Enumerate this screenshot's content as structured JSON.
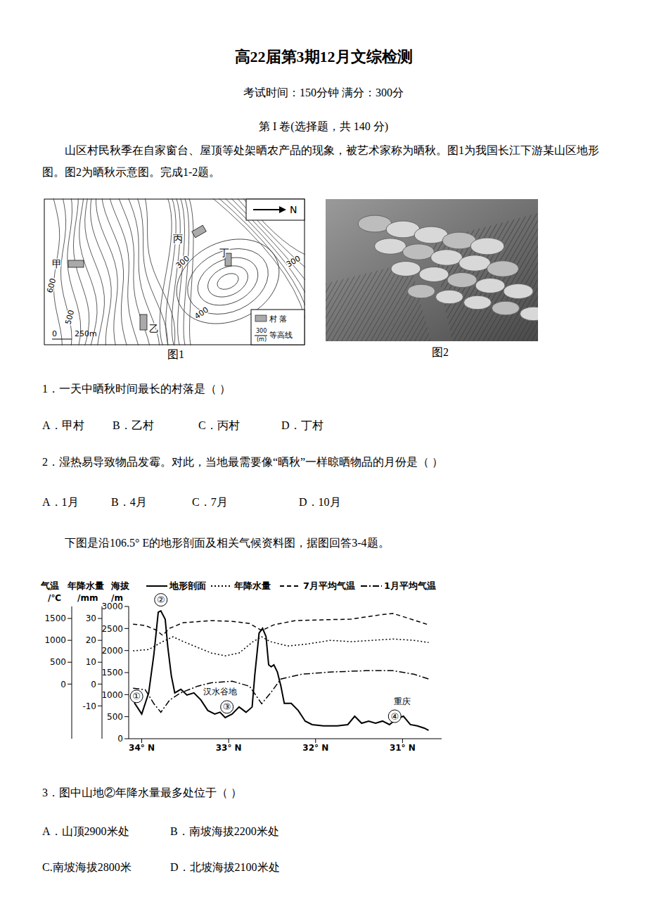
{
  "header": {
    "title": "高22届第3期12月文综检测",
    "subtitle": "考试时间：150分钟 满分：300分",
    "section": "第 I 卷(选择题，共 140 分)"
  },
  "passage1": "山区村民秋季在自家窗台、屋顶等处架晒农产品的现象，被艺术家称为晒秋。图1为我国长江下游某山区地形图。图2为晒秋示意图。完成1-2题。",
  "figures": {
    "fig1": {
      "caption": "图1",
      "north": "N",
      "villages": [
        "甲",
        "乙",
        "丙",
        "丁"
      ],
      "contour_labels": [
        "600",
        "500",
        "300",
        "400",
        "300"
      ],
      "legend": {
        "village": "村 落",
        "contour": "等高线",
        "contour_sample": "300",
        "contour_unit": "(m)"
      },
      "scale": {
        "zero": "0",
        "length": "250m"
      }
    },
    "fig2": {
      "caption": "图2"
    }
  },
  "questions": [
    {
      "text": "1．一天中晒秋时间最长的村落是（    ）",
      "options": [
        "A．甲村",
        "B．乙村",
        "C．丙村",
        "D．丁村"
      ]
    },
    {
      "text": "2．湿热易导致物品发霉。对此，当地最需要像“晒秋”一样晾晒物品的月份是（    ）",
      "options": [
        "A．1月",
        "B．4月",
        "C．7月",
        "D．10月"
      ]
    }
  ],
  "passage2": "下图是沿106.5° E的地形剖面及相关气候资料图，据图回答3-4题。",
  "chart_data": {
    "type": "line",
    "ylabel": "海拔",
    "yunit": "/m",
    "y2label": "气温",
    "y2unit": "/℃",
    "y3label": "年降水量",
    "y3unit": "/mm",
    "xlim": [
      34.15,
      30.55
    ],
    "xticks": [
      {
        "value": 34,
        "label": "34° N"
      },
      {
        "value": 33,
        "label": "33° N"
      },
      {
        "value": 32,
        "label": "32° N"
      },
      {
        "value": 31,
        "label": "31° N"
      }
    ],
    "ylim": [
      0,
      3000
    ],
    "yticks": [
      0,
      500,
      1000,
      1500,
      2000,
      2500,
      3000
    ],
    "y2lim": [
      -25,
      35.5
    ],
    "y2ticks": [
      -10,
      0,
      10,
      20,
      30
    ],
    "y3lim": [
      -1250,
      1775
    ],
    "y3ticks": [
      0,
      500,
      1000,
      1500
    ],
    "series": [
      {
        "name": "地形剖面",
        "color": "#000000",
        "line_style": "solid",
        "x": [
          34.1,
          34.08,
          34.0,
          33.92,
          33.86,
          33.81,
          33.78,
          33.73,
          33.7,
          33.66,
          33.62,
          33.55,
          33.48,
          33.4,
          33.32,
          33.24,
          33.16,
          33.1,
          33.04,
          32.96,
          32.88,
          32.8,
          32.73,
          32.7,
          32.65,
          32.61,
          32.57,
          32.54,
          32.51,
          32.48,
          32.44,
          32.4,
          32.36,
          32.28,
          32.2,
          32.12,
          32.04,
          31.91,
          31.75,
          31.63,
          31.55,
          31.47,
          31.39,
          31.31,
          31.23,
          31.15,
          31.07,
          30.99,
          30.91,
          30.83,
          30.75,
          30.7
        ],
        "values": [
          960,
          800,
          560,
          1040,
          1915,
          2870,
          2900,
          2710,
          2075,
          1435,
          1040,
          1120,
          990,
          1040,
          880,
          640,
          560,
          600,
          480,
          560,
          720,
          600,
          720,
          1435,
          2395,
          2505,
          2315,
          1675,
          1630,
          1675,
          1515,
          1200,
          800,
          800,
          640,
          400,
          320,
          290,
          290,
          320,
          510,
          350,
          400,
          350,
          400,
          320,
          450,
          510,
          320,
          290,
          240,
          190
        ]
      },
      {
        "name": "年降水量",
        "color": "#000000",
        "line_style": "dotted",
        "axis": "y3",
        "x": [
          34.1,
          33.92,
          33.76,
          33.64,
          33.52,
          33.36,
          33.2,
          33.04,
          32.88,
          32.72,
          32.62,
          32.52,
          32.32,
          32.08,
          31.83,
          31.59,
          31.35,
          31.11,
          30.87,
          30.7
        ],
        "values": [
          760,
          790,
          970,
          1080,
          970,
          840,
          710,
          645,
          710,
          970,
          1080,
          970,
          870,
          920,
          1000,
          970,
          1000,
          1030,
          1000,
          950
        ]
      },
      {
        "name": "7月平均气温",
        "color": "#000000",
        "line_style": "dashed",
        "axis": "y2",
        "x": [
          34.1,
          33.96,
          33.84,
          33.76,
          33.68,
          33.52,
          33.2,
          32.96,
          32.76,
          32.62,
          32.48,
          32.24,
          31.91,
          31.59,
          31.27,
          31.11,
          30.95,
          30.7
        ],
        "values": [
          27.4,
          26.8,
          24.8,
          22.3,
          25.5,
          28.1,
          29.0,
          28.7,
          27.7,
          24.5,
          27.1,
          29.0,
          29.4,
          29.7,
          31.6,
          32.3,
          30.3,
          27.1
        ]
      },
      {
        "name": "1月平均气温",
        "color": "#000000",
        "line_style": "dashdot",
        "axis": "y2",
        "x": [
          34.1,
          33.96,
          33.86,
          33.78,
          33.68,
          33.56,
          33.36,
          33.2,
          32.96,
          32.76,
          32.62,
          32.52,
          32.4,
          32.16,
          31.83,
          31.43,
          31.11,
          30.87,
          30.7
        ],
        "values": [
          -1.9,
          -2.6,
          -9.0,
          -12.9,
          -7.4,
          -4.2,
          -1.0,
          0.6,
          1.3,
          -1.0,
          -9.0,
          -4.2,
          2.3,
          4.5,
          5.5,
          6.1,
          6.1,
          4.5,
          2.3
        ]
      }
    ],
    "annotations": [
      {
        "text": "①",
        "x": 34.06,
        "y": 960,
        "marker": "circle"
      },
      {
        "text": "②",
        "x": 33.78,
        "y": 3150,
        "marker": "circle"
      },
      {
        "text": "③",
        "x": 33.02,
        "y": 720,
        "marker": "circle"
      },
      {
        "text": "④",
        "x": 31.09,
        "y": 510,
        "marker": "circle"
      },
      {
        "text": "汉水谷地",
        "x": 33.1,
        "y": 1070
      },
      {
        "text": "重庆",
        "x": 31.0,
        "y": 850
      }
    ]
  },
  "questions2": [
    {
      "text": "3．图中山地②年降水量最多处位于（    ）",
      "options": [
        "A．山顶2900米处",
        "B．南坡海拔2200米处",
        "C.南坡海拔2800米",
        "D．北坡海拔2100米处"
      ]
    }
  ]
}
